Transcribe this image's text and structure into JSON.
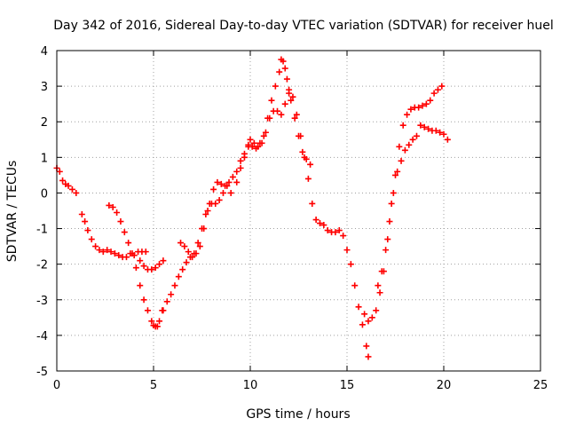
{
  "chart_data": {
    "type": "scatter",
    "title": "Day 342 of 2016, Sidereal Day-to-day VTEC variation (SDTVAR) for receiver huel",
    "xlabel": "GPS time / hours",
    "ylabel": "SDTVAR / TECUs",
    "xlim": [
      0,
      25
    ],
    "ylim": [
      -5,
      4
    ],
    "xticks": [
      "0",
      "5",
      "10",
      "15",
      "20",
      "25"
    ],
    "yticks": [
      "-5",
      "-4",
      "-3",
      "-2",
      "-1",
      "0",
      "1",
      "2",
      "3",
      "4"
    ],
    "grid": true,
    "marker": "+",
    "color": "#ff0000",
    "series": [
      {
        "x": [
          0.0,
          0.15,
          0.3,
          0.45,
          0.6,
          0.8,
          1.0
        ],
        "y": [
          0.7,
          0.6,
          0.35,
          0.25,
          0.2,
          0.1,
          0.0
        ]
      },
      {
        "x": [
          1.3,
          1.45,
          1.6,
          1.8,
          2.0,
          2.2,
          2.4,
          2.6,
          2.8,
          3.0,
          3.2,
          3.4,
          3.6,
          3.8,
          4.0,
          4.2,
          4.4,
          4.6
        ],
        "y": [
          -0.6,
          -0.8,
          -1.05,
          -1.3,
          -1.5,
          -1.6,
          -1.65,
          -1.6,
          -1.65,
          -1.7,
          -1.75,
          -1.8,
          -1.8,
          -1.7,
          -1.75,
          -1.65,
          -1.65,
          -1.65
        ]
      },
      {
        "x": [
          2.7,
          2.9,
          3.1,
          3.3,
          3.5,
          3.7,
          3.9,
          4.1,
          4.3,
          4.5,
          4.7,
          4.9,
          5.0,
          5.1,
          5.2,
          5.3,
          5.45
        ],
        "y": [
          -0.35,
          -0.4,
          -0.55,
          -0.8,
          -1.1,
          -1.4,
          -1.7,
          -2.1,
          -2.6,
          -3.0,
          -3.3,
          -3.6,
          -3.72,
          -3.75,
          -3.75,
          -3.6,
          -3.3
        ]
      },
      {
        "x": [
          4.3,
          4.5,
          4.7,
          4.9,
          5.1,
          5.3,
          5.5
        ],
        "y": [
          -1.9,
          -2.05,
          -2.15,
          -2.15,
          -2.1,
          -2.0,
          -1.9
        ]
      },
      {
        "x": [
          5.5,
          5.7,
          5.9,
          6.1,
          6.3,
          6.5,
          6.7,
          6.9,
          7.1,
          7.3,
          7.5,
          7.7,
          7.9,
          8.1,
          8.3,
          8.5,
          8.7,
          8.9,
          9.1,
          9.3,
          9.5,
          9.7,
          9.9
        ],
        "y": [
          -3.3,
          -3.05,
          -2.85,
          -2.6,
          -2.35,
          -2.15,
          -1.95,
          -1.8,
          -1.7,
          -1.4,
          -1.0,
          -0.6,
          -0.3,
          0.1,
          0.3,
          0.25,
          0.2,
          0.3,
          0.45,
          0.6,
          0.9,
          1.1,
          1.3
        ]
      },
      {
        "x": [
          6.4,
          6.6,
          6.8,
          7.0,
          7.2,
          7.4,
          7.6,
          7.8,
          8.0,
          8.2,
          8.4,
          8.6,
          8.8,
          9.0
        ],
        "y": [
          -1.4,
          -1.5,
          -1.65,
          -1.8,
          -1.7,
          -1.5,
          -1.0,
          -0.5,
          -0.3,
          -0.3,
          -0.2,
          0.0,
          0.2,
          0.0
        ]
      },
      {
        "x": [
          9.3,
          9.5,
          9.7,
          9.9,
          10.1,
          10.3,
          10.5,
          10.7,
          10.9,
          11.1,
          11.3,
          11.5,
          11.6,
          11.7,
          11.8,
          11.9,
          12.0,
          12.1,
          12.3,
          12.5,
          12.7,
          12.9,
          13.1
        ],
        "y": [
          0.3,
          0.7,
          1.0,
          1.35,
          1.3,
          1.25,
          1.4,
          1.6,
          2.1,
          2.6,
          3.0,
          3.4,
          3.75,
          3.7,
          3.5,
          3.2,
          2.9,
          2.6,
          2.1,
          1.6,
          1.15,
          0.95,
          0.8
        ]
      },
      {
        "x": [
          10.0,
          10.2,
          10.4,
          10.6,
          10.8,
          11.0,
          11.2,
          11.4,
          11.6,
          11.8,
          12.0,
          12.2,
          12.4,
          12.6,
          12.8,
          13.0,
          13.2,
          13.4,
          13.6,
          13.8,
          14.0,
          14.2,
          14.4,
          14.6,
          14.8,
          15.0,
          15.2,
          15.4,
          15.6,
          15.8,
          16.0,
          16.1
        ],
        "y": [
          1.5,
          1.4,
          1.3,
          1.4,
          1.7,
          2.1,
          2.3,
          2.3,
          2.2,
          2.5,
          2.8,
          2.7,
          2.2,
          1.6,
          1.0,
          0.4,
          -0.3,
          -0.75,
          -0.85,
          -0.9,
          -1.05,
          -1.1,
          -1.1,
          -1.05,
          -1.2,
          -1.6,
          -2.0,
          -2.6,
          -3.2,
          -3.7,
          -4.3,
          -4.6
        ]
      },
      {
        "x": [
          15.9,
          16.1,
          16.3,
          16.5,
          16.7,
          16.9,
          17.1,
          17.3,
          17.5,
          17.7,
          17.9,
          18.1,
          18.3,
          18.5,
          18.7,
          18.9,
          19.1,
          19.3,
          19.5,
          19.7,
          19.9
        ],
        "y": [
          -3.4,
          -3.6,
          -3.5,
          -3.3,
          -2.8,
          -2.2,
          -1.3,
          -0.3,
          0.5,
          1.3,
          1.9,
          2.2,
          2.35,
          2.4,
          2.4,
          2.45,
          2.5,
          2.6,
          2.8,
          2.9,
          3.0
        ]
      },
      {
        "x": [
          16.6,
          16.8,
          17.0,
          17.2,
          17.4,
          17.6,
          17.8,
          18.0,
          18.2,
          18.4,
          18.6,
          18.8,
          19.0,
          19.2,
          19.4,
          19.6,
          19.8,
          20.0,
          20.2
        ],
        "y": [
          -2.6,
          -2.2,
          -1.6,
          -0.8,
          0.0,
          0.6,
          0.9,
          1.2,
          1.35,
          1.5,
          1.6,
          1.9,
          1.85,
          1.8,
          1.75,
          1.75,
          1.7,
          1.65,
          1.5
        ]
      }
    ]
  }
}
